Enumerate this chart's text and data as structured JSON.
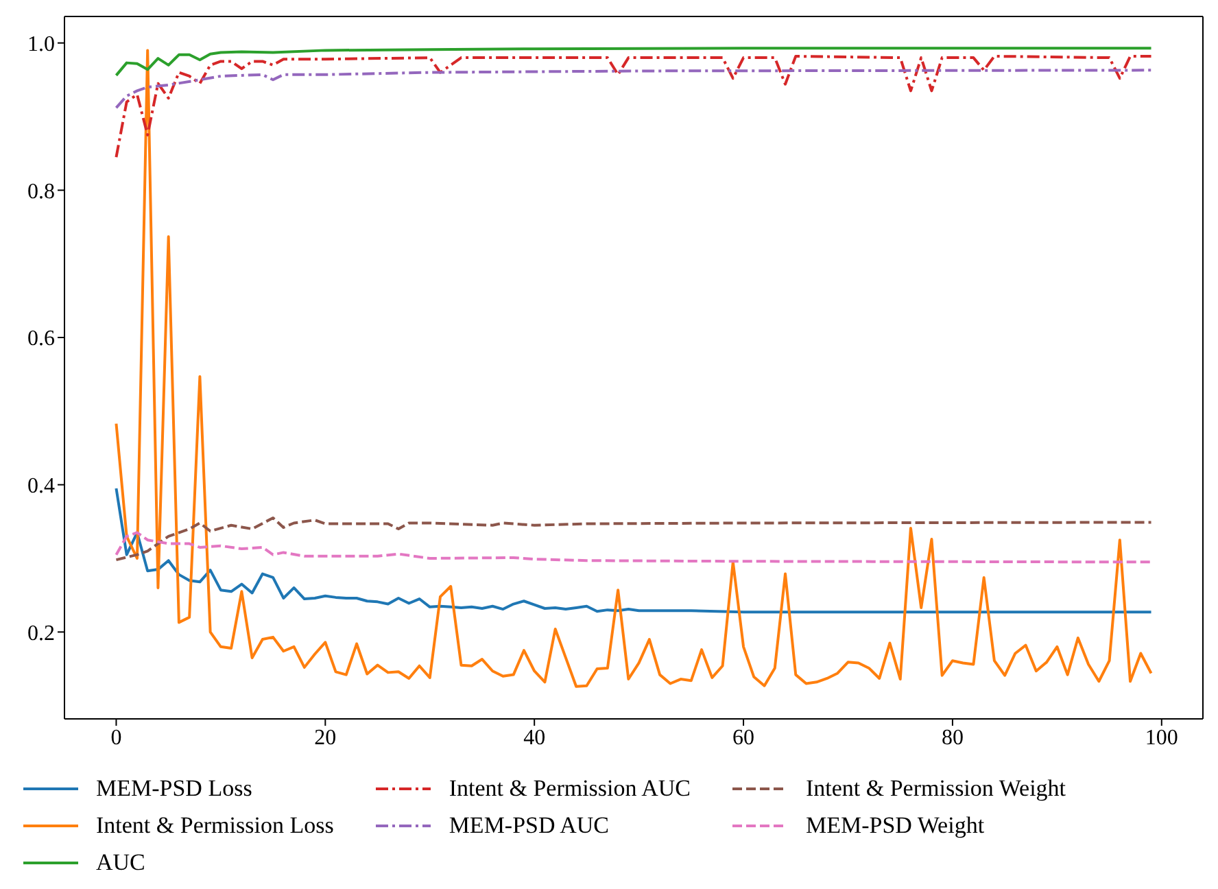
{
  "chart_data": {
    "type": "line",
    "legend": "bottom",
    "xlim": [
      -4.95,
      103.95
    ],
    "ylim": [
      0.082,
      1.036
    ],
    "xticks": [
      0,
      20,
      40,
      60,
      80,
      100
    ],
    "yticks": [
      {
        "value": 0.2,
        "label": "0.2"
      },
      {
        "value": 0.4,
        "label": "0.4"
      },
      {
        "value": 0.6,
        "label": "0.6"
      },
      {
        "value": 0.8,
        "label": "0.8"
      },
      {
        "value": 1,
        "label": "1.0"
      }
    ],
    "series": [
      {
        "name": "MEM-PSD Loss",
        "color": "#1f77b4",
        "line_style": "solid",
        "x": [
          0,
          1,
          2,
          3,
          4,
          5,
          6,
          7,
          8,
          9,
          10,
          11,
          12,
          13,
          14,
          15,
          16,
          17,
          18,
          19,
          20,
          21,
          22,
          23,
          24,
          25,
          26,
          27,
          28,
          29,
          30,
          31,
          32,
          33,
          34,
          35,
          36,
          37,
          38,
          39,
          40,
          41,
          42,
          43,
          44,
          45,
          46,
          47,
          48,
          49,
          50,
          55,
          60,
          70,
          80,
          90,
          99
        ],
        "values": [
          0.395,
          0.305,
          0.335,
          0.283,
          0.285,
          0.297,
          0.278,
          0.27,
          0.268,
          0.284,
          0.257,
          0.255,
          0.265,
          0.253,
          0.279,
          0.274,
          0.246,
          0.26,
          0.245,
          0.246,
          0.249,
          0.247,
          0.246,
          0.246,
          0.242,
          0.241,
          0.238,
          0.246,
          0.239,
          0.245,
          0.234,
          0.235,
          0.234,
          0.233,
          0.234,
          0.232,
          0.235,
          0.231,
          0.238,
          0.242,
          0.237,
          0.232,
          0.233,
          0.231,
          0.233,
          0.235,
          0.228,
          0.23,
          0.229,
          0.231,
          0.229,
          0.229,
          0.227,
          0.227,
          0.227,
          0.227,
          0.227
        ]
      },
      {
        "name": "Intent & Permission Loss",
        "color": "#ff7f0e",
        "line_style": "solid",
        "x": [
          0,
          1,
          2,
          3,
          4,
          5,
          6,
          7,
          8,
          9,
          10,
          11,
          12,
          13,
          14,
          15,
          16,
          17,
          18,
          19,
          20,
          21,
          22,
          23,
          24,
          25,
          26,
          27,
          28,
          29,
          30,
          31,
          32,
          33,
          34,
          35,
          36,
          37,
          38,
          39,
          40,
          41,
          42,
          43,
          44,
          45,
          46,
          47,
          48,
          49,
          50,
          51,
          52,
          53,
          54,
          55,
          56,
          57,
          58,
          59,
          60,
          61,
          62,
          63,
          64,
          65,
          66,
          67,
          68,
          69,
          70,
          71,
          72,
          73,
          74,
          75,
          76,
          77,
          78,
          79,
          80,
          81,
          82,
          83,
          84,
          85,
          86,
          87,
          88,
          89,
          90,
          91,
          92,
          93,
          94,
          95,
          96,
          97,
          98,
          99
        ],
        "values": [
          0.483,
          0.33,
          0.3,
          0.99,
          0.26,
          0.737,
          0.213,
          0.22,
          0.547,
          0.2,
          0.18,
          0.178,
          0.255,
          0.165,
          0.19,
          0.193,
          0.174,
          0.18,
          0.152,
          0.17,
          0.186,
          0.146,
          0.142,
          0.184,
          0.143,
          0.155,
          0.145,
          0.146,
          0.137,
          0.154,
          0.138,
          0.248,
          0.262,
          0.155,
          0.154,
          0.163,
          0.147,
          0.14,
          0.142,
          0.175,
          0.147,
          0.132,
          0.204,
          0.165,
          0.126,
          0.127,
          0.15,
          0.151,
          0.257,
          0.136,
          0.158,
          0.19,
          0.142,
          0.13,
          0.136,
          0.134,
          0.176,
          0.138,
          0.154,
          0.295,
          0.18,
          0.139,
          0.127,
          0.151,
          0.279,
          0.142,
          0.13,
          0.132,
          0.137,
          0.144,
          0.159,
          0.158,
          0.151,
          0.137,
          0.185,
          0.136,
          0.341,
          0.233,
          0.326,
          0.141,
          0.161,
          0.158,
          0.156,
          0.274,
          0.161,
          0.141,
          0.171,
          0.182,
          0.147,
          0.159,
          0.18,
          0.142,
          0.192,
          0.156,
          0.133,
          0.161,
          0.325,
          0.133,
          0.171,
          0.144
        ]
      },
      {
        "name": "AUC",
        "color": "#2ca02c",
        "line_style": "solid",
        "x": [
          0,
          1,
          2,
          3,
          4,
          5,
          6,
          7,
          8,
          9,
          10,
          12,
          15,
          20,
          30,
          40,
          60,
          99
        ],
        "values": [
          0.956,
          0.973,
          0.972,
          0.964,
          0.979,
          0.97,
          0.984,
          0.984,
          0.977,
          0.985,
          0.987,
          0.988,
          0.987,
          0.99,
          0.991,
          0.992,
          0.993,
          0.993
        ]
      },
      {
        "name": "Intent & Permission AUC",
        "color": "#d62728",
        "line_style": "dashdot",
        "x": [
          0,
          1,
          2,
          3,
          4,
          5,
          6,
          7,
          8,
          9,
          10,
          11,
          12,
          13,
          14,
          15,
          16,
          20,
          30,
          31,
          33,
          40,
          47,
          48,
          49,
          58,
          59,
          60,
          63,
          64,
          65,
          75,
          76,
          77,
          78,
          79,
          82,
          83,
          84,
          95,
          96,
          97,
          99
        ],
        "values": [
          0.845,
          0.92,
          0.93,
          0.875,
          0.945,
          0.925,
          0.96,
          0.955,
          0.945,
          0.97,
          0.975,
          0.975,
          0.965,
          0.975,
          0.975,
          0.97,
          0.978,
          0.978,
          0.98,
          0.96,
          0.98,
          0.98,
          0.98,
          0.957,
          0.98,
          0.98,
          0.952,
          0.98,
          0.98,
          0.944,
          0.982,
          0.98,
          0.935,
          0.98,
          0.935,
          0.98,
          0.98,
          0.963,
          0.982,
          0.98,
          0.952,
          0.982,
          0.982
        ]
      },
      {
        "name": "MEM-PSD AUC",
        "color": "#9467bd",
        "line_style": "dashdot",
        "x": [
          0,
          1,
          2,
          3,
          5,
          8,
          10,
          14,
          15,
          16,
          20,
          30,
          50,
          99
        ],
        "values": [
          0.912,
          0.928,
          0.935,
          0.94,
          0.943,
          0.95,
          0.955,
          0.957,
          0.95,
          0.957,
          0.957,
          0.96,
          0.962,
          0.963
        ]
      },
      {
        "name": "Intent & Permission Weight",
        "color": "#8c564b",
        "line_style": "dashed",
        "x": [
          0,
          2,
          3,
          5,
          7,
          8,
          9,
          11,
          13,
          15,
          16,
          17,
          19,
          20,
          26,
          27,
          28,
          30,
          36,
          37,
          40,
          45,
          60,
          99
        ],
        "values": [
          0.298,
          0.305,
          0.31,
          0.33,
          0.34,
          0.348,
          0.337,
          0.345,
          0.34,
          0.355,
          0.342,
          0.348,
          0.352,
          0.347,
          0.347,
          0.34,
          0.348,
          0.348,
          0.345,
          0.348,
          0.345,
          0.347,
          0.348,
          0.349
        ]
      },
      {
        "name": "MEM-PSD Weight",
        "color": "#e377c2",
        "line_style": "dashed",
        "x": [
          0,
          1,
          2,
          3,
          5,
          7,
          8,
          10,
          12,
          14,
          15,
          16,
          18,
          25,
          27,
          30,
          38,
          40,
          45,
          60,
          99
        ],
        "values": [
          0.305,
          0.33,
          0.335,
          0.325,
          0.32,
          0.32,
          0.315,
          0.317,
          0.313,
          0.315,
          0.305,
          0.308,
          0.303,
          0.303,
          0.306,
          0.3,
          0.301,
          0.299,
          0.297,
          0.296,
          0.295
        ]
      }
    ]
  }
}
